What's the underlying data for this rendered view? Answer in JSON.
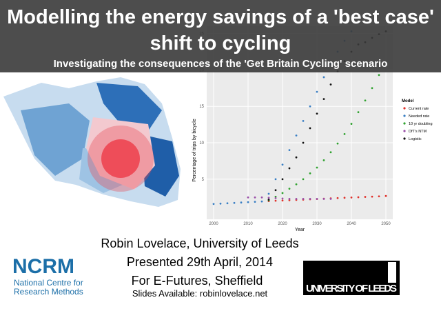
{
  "header": {
    "title": "Modelling the energy savings of a 'best case' shift to cycling",
    "subtitle": "Investigating the consequences of the 'Get Britain Cycling' scenario"
  },
  "chart_data": {
    "type": "scatter",
    "x_label": "Year",
    "y_label": "Percentage of trips by bicycle",
    "legend_title": "Model",
    "legend": "right",
    "grid": true,
    "x": [
      2000,
      2002,
      2004,
      2006,
      2008,
      2010,
      2012,
      2014,
      2016,
      2018,
      2020,
      2022,
      2024,
      2026,
      2028,
      2030,
      2032,
      2034,
      2036,
      2038,
      2040,
      2042,
      2044,
      2046,
      2048,
      2050
    ],
    "xlim": [
      1998,
      2052
    ],
    "xticks": [
      2000,
      2010,
      2020,
      2030,
      2040,
      2050
    ],
    "ylim": [
      -0.5,
      26
    ],
    "yticks": [
      5,
      10,
      15,
      20,
      25
    ],
    "series": [
      {
        "name": "Current rate",
        "color": "#e0302a",
        "values": [
          null,
          null,
          null,
          null,
          null,
          null,
          null,
          null,
          2.0,
          2.04,
          2.08,
          2.12,
          2.16,
          2.2,
          2.24,
          2.28,
          2.32,
          2.37,
          2.41,
          2.45,
          2.49,
          2.53,
          2.57,
          2.61,
          2.65,
          2.7
        ]
      },
      {
        "name": "Needed rate",
        "color": "#3a7fc4",
        "values": [
          1.6,
          1.65,
          1.7,
          1.75,
          1.8,
          1.85,
          1.9,
          1.95,
          3.0,
          5.0,
          7.0,
          9.0,
          11.0,
          13.0,
          15.0,
          17.0,
          19.0,
          20.8,
          22.5,
          24.0,
          25.3,
          null,
          null,
          null,
          null,
          null
        ]
      },
      {
        "name": "10 yr doubling",
        "color": "#2fa22f",
        "values": [
          null,
          null,
          null,
          null,
          null,
          null,
          null,
          null,
          2.1,
          2.6,
          3.1,
          3.7,
          4.3,
          5.0,
          5.8,
          6.6,
          7.6,
          8.7,
          9.9,
          11.2,
          12.6,
          14.2,
          15.8,
          17.5,
          19.3,
          21
        ]
      },
      {
        "name": "DfT's NTM",
        "color": "#9a4fa8",
        "values": [
          null,
          null,
          null,
          null,
          null,
          2.5,
          2.5,
          2.5,
          2.45,
          2.4,
          2.35,
          2.3,
          2.3,
          2.3,
          2.3,
          2.3,
          2.3,
          2.3,
          null,
          null,
          null,
          null,
          null,
          null,
          null,
          null
        ]
      },
      {
        "name": "Logistic",
        "color": "#111111",
        "values": [
          null,
          null,
          null,
          null,
          null,
          null,
          null,
          null,
          2.2,
          3.5,
          5,
          6.5,
          8,
          10,
          12,
          14,
          16,
          18,
          19.8,
          21.2,
          22.5,
          23.5,
          23.8,
          24.4,
          24.9,
          25.3
        ]
      }
    ]
  },
  "credits": {
    "author": "Robin Lovelace, University of Leeds",
    "presented": "Presented 29th April, 2014",
    "event": "For E-Futures, Sheffield",
    "slides": "Slides Available: robinlovelace.net"
  },
  "logos": {
    "ncrm": "NCRM",
    "ncrm_line1": "National Centre for",
    "ncrm_line2": "Research Methods",
    "leeds": "UNIVERSITY OF LEEDS"
  }
}
